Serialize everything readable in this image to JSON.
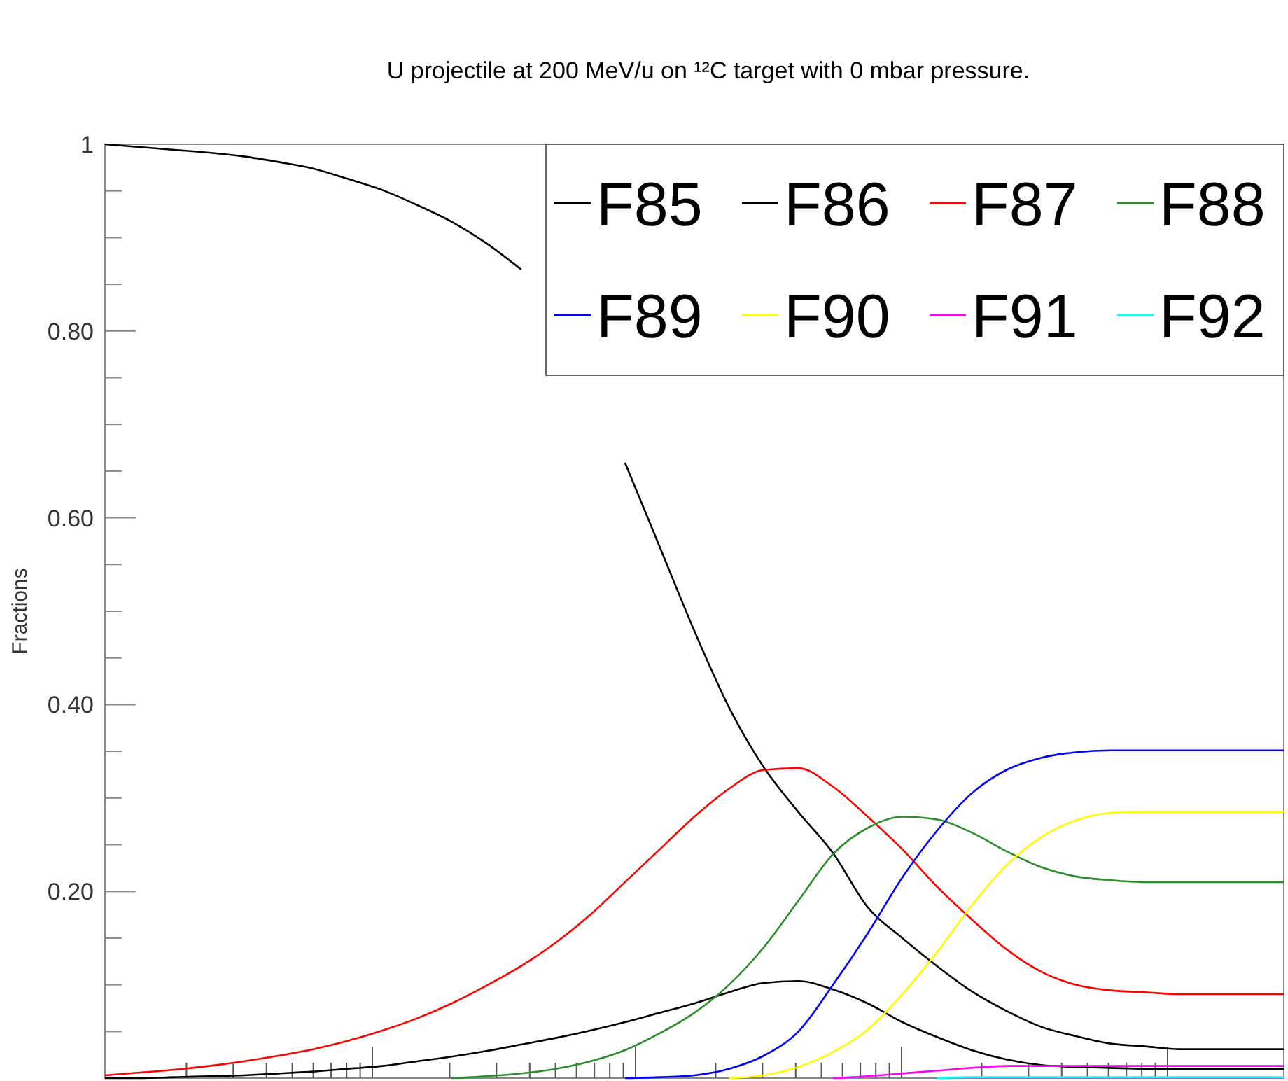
{
  "chart_data": {
    "type": "line",
    "title": "U projectile at 200 MeV/u on ¹²C target with 0 mbar pressure.",
    "ylabel": "Fractions",
    "categories": [
      null,
      null,
      null,
      null,
      null,
      null,
      null,
      null,
      null,
      null,
      null,
      null,
      null,
      null,
      null,
      null,
      null,
      null,
      null,
      null,
      null,
      null,
      null,
      null,
      null,
      null,
      null,
      null,
      null,
      null,
      null,
      null,
      null,
      null,
      null
    ],
    "ylim": [
      0,
      1
    ],
    "yticks": [
      {
        "value": 0.2,
        "label": "0.20"
      },
      {
        "value": 0.4,
        "label": "0.40"
      },
      {
        "value": 0.6,
        "label": "0.60"
      },
      {
        "value": 0.8,
        "label": "0.80"
      },
      1
    ],
    "tick_labels": "y",
    "legend": "top right",
    "grid": false,
    "marker": "none",
    "line_style": "solid",
    "series": [
      {
        "name": "F85",
        "color": "#000000",
        "values": [
          1.0,
          0.997,
          0.994,
          0.991,
          0.987,
          0.981,
          0.974,
          0.963,
          0.951,
          0.935,
          0.917,
          0.894,
          0.866,
          null,
          null,
          0.659,
          0.569,
          0.479,
          0.397,
          0.333,
          0.285,
          0.241,
          0.183,
          0.15,
          0.12,
          0.093,
          0.072,
          0.055,
          0.045,
          0.037,
          0.034,
          0.031,
          0.031,
          0.031,
          0.031
        ]
      },
      {
        "name": "F86",
        "color": "#000000",
        "values": [
          0,
          0,
          0.001,
          0.002,
          0.003,
          0.005,
          0.007,
          0.01,
          0.013,
          0.018,
          0.023,
          0.029,
          0.036,
          0.043,
          0.051,
          0.06,
          0.07,
          0.08,
          0.092,
          0.102,
          0.104,
          0.095,
          0.08,
          0.06,
          0.044,
          0.03,
          0.02,
          0.014,
          0.012,
          0.011,
          0.01,
          0.01,
          0.01,
          0.01,
          0.01
        ]
      },
      {
        "name": "F87",
        "color": "#ff0000",
        "values": [
          0.003,
          0.006,
          0.009,
          0.013,
          0.018,
          0.024,
          0.031,
          0.04,
          0.051,
          0.064,
          0.08,
          0.099,
          0.12,
          0.145,
          0.175,
          0.21,
          0.245,
          0.28,
          0.31,
          0.33,
          0.332,
          0.312,
          0.28,
          0.245,
          0.205,
          0.17,
          0.138,
          0.114,
          0.1,
          0.094,
          0.092,
          0.09,
          0.09,
          0.09,
          0.09
        ]
      },
      {
        "name": "F88",
        "color": "#2e8b2e",
        "values": [
          null,
          null,
          null,
          null,
          null,
          null,
          null,
          null,
          null,
          null,
          0,
          0.002,
          0.005,
          0.01,
          0.018,
          0.03,
          0.048,
          0.07,
          0.1,
          0.14,
          0.19,
          0.24,
          0.268,
          0.28,
          0.277,
          0.263,
          0.243,
          0.226,
          0.216,
          0.212,
          0.21,
          0.21,
          0.21,
          0.21,
          0.21
        ]
      },
      {
        "name": "F89",
        "color": "#0000ff",
        "values": [
          null,
          null,
          null,
          null,
          null,
          null,
          null,
          null,
          null,
          null,
          null,
          null,
          null,
          null,
          null,
          0,
          0.001,
          0.003,
          0.01,
          0.024,
          0.05,
          0.1,
          0.155,
          0.215,
          0.265,
          0.305,
          0.33,
          0.343,
          0.349,
          0.351,
          0.351,
          0.351,
          0.351,
          0.351,
          0.351
        ]
      },
      {
        "name": "F90",
        "color": "#ffff00",
        "values": [
          null,
          null,
          null,
          null,
          null,
          null,
          null,
          null,
          null,
          null,
          null,
          null,
          null,
          null,
          null,
          null,
          null,
          null,
          0,
          0.003,
          0.012,
          0.028,
          0.052,
          0.09,
          0.135,
          0.185,
          0.228,
          0.258,
          0.276,
          0.284,
          0.285,
          0.285,
          0.285,
          0.285,
          0.285
        ]
      },
      {
        "name": "F91",
        "color": "#ff00ff",
        "values": [
          null,
          null,
          null,
          null,
          null,
          null,
          null,
          null,
          null,
          null,
          null,
          null,
          null,
          null,
          null,
          null,
          null,
          null,
          null,
          null,
          null,
          0,
          0.002,
          0.005,
          0.008,
          0.011,
          0.013,
          0.013,
          0.013,
          0.013,
          0.013,
          0.013,
          0.013,
          0.013,
          0.013
        ]
      },
      {
        "name": "F92",
        "color": "#00ffff",
        "values": [
          null,
          null,
          null,
          null,
          null,
          null,
          null,
          null,
          null,
          null,
          null,
          null,
          null,
          null,
          null,
          null,
          null,
          null,
          null,
          null,
          null,
          null,
          null,
          null,
          0,
          0.001,
          0.001,
          0.001,
          0.001,
          0.001,
          0.001,
          0.001,
          0.001,
          0.001,
          0.001
        ]
      }
    ]
  }
}
